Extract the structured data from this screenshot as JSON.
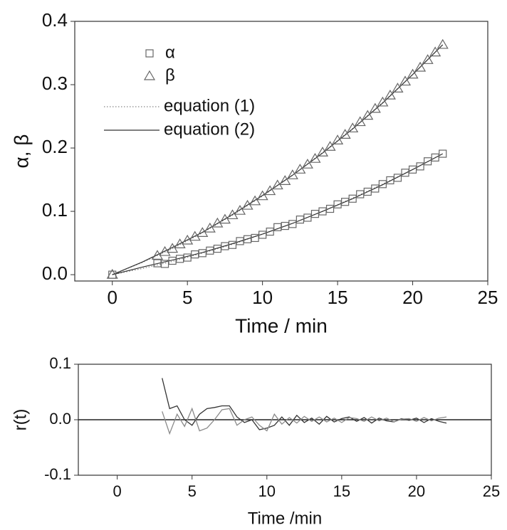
{
  "chart_data": [
    {
      "type": "scatter",
      "xlabel": "Time / min",
      "ylabel": "α, β",
      "xlim": [
        -2.5,
        25
      ],
      "ylim": [
        -0.01,
        0.4
      ],
      "xticks": [
        0,
        5,
        10,
        15,
        20,
        25
      ],
      "yticks": [
        {
          "value": 0,
          "label": "0.0"
        },
        0.1,
        0.2,
        0.3,
        0.4
      ],
      "legend": "upper left",
      "x": [
        0,
        3,
        3.5,
        4,
        4.5,
        5,
        5.5,
        6,
        6.5,
        7,
        7.5,
        8,
        8.5,
        9,
        9.5,
        10,
        10.5,
        11,
        11.5,
        12,
        12.5,
        13,
        13.5,
        14,
        14.5,
        15,
        15.5,
        16,
        16.5,
        17,
        17.5,
        18,
        18.5,
        19,
        19.5,
        20,
        20.5,
        21,
        21.5,
        22
      ],
      "series": [
        {
          "name": "α",
          "marker": "square",
          "color": "#666666",
          "values": [
            0,
            0.018,
            0.017,
            0.022,
            0.025,
            0.027,
            0.032,
            0.034,
            0.038,
            0.041,
            0.045,
            0.047,
            0.053,
            0.056,
            0.058,
            0.063,
            0.068,
            0.075,
            0.077,
            0.08,
            0.087,
            0.09,
            0.096,
            0.1,
            0.104,
            0.111,
            0.115,
            0.12,
            0.127,
            0.131,
            0.136,
            0.143,
            0.149,
            0.153,
            0.161,
            0.166,
            0.171,
            0.179,
            0.185,
            0.191
          ]
        },
        {
          "name": "β",
          "marker": "triangle",
          "color": "#666666",
          "values": [
            0,
            0.03,
            0.036,
            0.041,
            0.048,
            0.054,
            0.06,
            0.066,
            0.073,
            0.081,
            0.087,
            0.094,
            0.101,
            0.109,
            0.116,
            0.124,
            0.132,
            0.141,
            0.148,
            0.157,
            0.166,
            0.174,
            0.183,
            0.193,
            0.202,
            0.212,
            0.221,
            0.231,
            0.241,
            0.251,
            0.262,
            0.272,
            0.283,
            0.294,
            0.305,
            0.316,
            0.327,
            0.339,
            0.351,
            0.363
          ]
        }
      ],
      "lines": [
        {
          "name": "equation (1)",
          "dash": "dotted",
          "color": "#888888",
          "x": [
            0,
            2,
            4,
            6,
            8,
            10,
            12,
            14,
            16,
            18,
            20,
            22
          ],
          "curves": [
            [
              0,
              0.0098,
              0.021,
              0.034,
              0.048,
              0.064,
              0.081,
              0.1,
              0.121,
              0.143,
              0.166,
              0.191
            ],
            [
              0,
              0.0194,
              0.041,
              0.066,
              0.094,
              0.124,
              0.157,
              0.193,
              0.231,
              0.272,
              0.316,
              0.363
            ]
          ]
        },
        {
          "name": "equation (2)",
          "dash": "solid",
          "color": "#333333",
          "x": [
            0,
            2,
            4,
            6,
            8,
            10,
            12,
            14,
            16,
            18,
            20,
            22
          ],
          "curves": [
            [
              0,
              0.012,
              0.023,
              0.035,
              0.049,
              0.064,
              0.081,
              0.1,
              0.12,
              0.142,
              0.166,
              0.191
            ],
            [
              0,
              0.02,
              0.043,
              0.067,
              0.095,
              0.125,
              0.157,
              0.192,
              0.23,
              0.271,
              0.316,
              0.363
            ]
          ]
        }
      ]
    },
    {
      "type": "line",
      "xlabel": "Time /min",
      "ylabel": "r(t)",
      "xlim": [
        -2.6,
        25
      ],
      "ylim": [
        -0.1,
        0.1
      ],
      "xticks": [
        0,
        5,
        10,
        15,
        20,
        25
      ],
      "yticks": [
        -0.1,
        {
          "value": 0,
          "label": "0.0"
        },
        0.1
      ],
      "hline": 0,
      "x": [
        3,
        3.5,
        4,
        4.5,
        5,
        5.5,
        6,
        6.5,
        7,
        7.5,
        8,
        8.5,
        9,
        9.5,
        10,
        10.5,
        11,
        11.5,
        12,
        12.5,
        13,
        13.5,
        14,
        14.5,
        15,
        15.5,
        16,
        16.5,
        17,
        17.5,
        18,
        18.5,
        19,
        19.5,
        20,
        20.5,
        21,
        21.5,
        22
      ],
      "series": [
        {
          "color": "#333333",
          "values": [
            0.075,
            0.02,
            0.025,
            0.0,
            -0.01,
            0.01,
            0.02,
            0.022,
            0.025,
            0.025,
            0.005,
            -0.005,
            0.0,
            -0.018,
            -0.015,
            -0.01,
            0.005,
            -0.01,
            0.008,
            -0.005,
            0.003,
            -0.008,
            0.006,
            -0.004,
            0.002,
            0.005,
            -0.003,
            0.004,
            -0.006,
            0.003,
            -0.002,
            -0.004,
            0.002,
            -0.001,
            0.003,
            -0.005,
            0.002,
            -0.003,
            -0.006
          ]
        },
        {
          "color": "#8a8a8a",
          "values": [
            0.015,
            -0.025,
            0.01,
            -0.012,
            0.02,
            -0.02,
            -0.015,
            0.0,
            0.018,
            0.02,
            -0.01,
            0.0,
            0.005,
            -0.01,
            -0.02,
            0.01,
            -0.008,
            0.004,
            -0.006,
            0.006,
            -0.003,
            0.005,
            -0.004,
            0.003,
            -0.005,
            0.004,
            0.002,
            -0.003,
            0.005,
            -0.002,
            0.003,
            -0.004,
            0.001,
            0.002,
            -0.003,
            0.004,
            -0.002,
            0.003,
            0.005
          ]
        }
      ]
    }
  ]
}
